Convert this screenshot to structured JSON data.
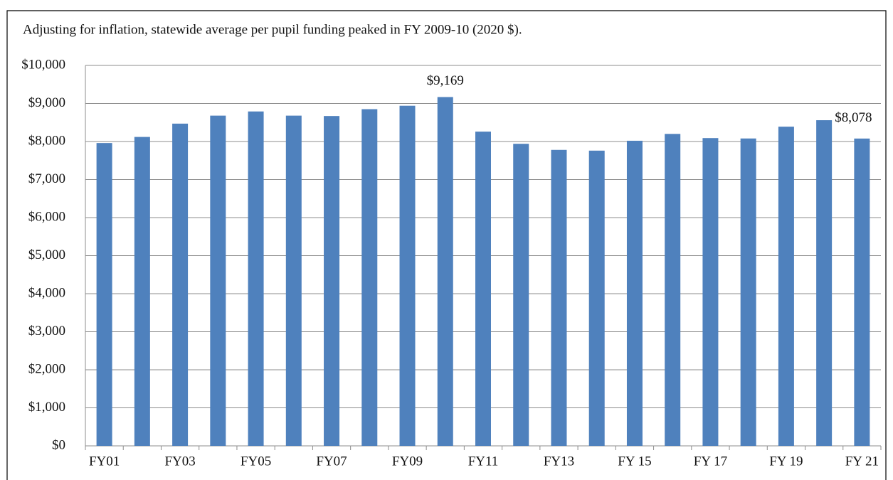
{
  "chart_data": {
    "type": "bar",
    "title": "Adjusting for inflation, statewide average per pupil funding peaked in FY 2009-10 (2020 $).",
    "categories": [
      "FY01",
      null,
      "FY03",
      null,
      "FY05",
      null,
      "FY07",
      null,
      "FY09",
      null,
      "FY11",
      null,
      "FY13",
      null,
      "FY 15",
      null,
      "FY 17",
      null,
      "FY 19",
      null,
      "FY 21"
    ],
    "values": [
      7960,
      8120,
      8470,
      8680,
      8790,
      8680,
      8670,
      8850,
      8940,
      9169,
      8260,
      7940,
      7780,
      7760,
      8020,
      8200,
      8090,
      8080,
      8390,
      8560,
      8078
    ],
    "value_labels": [
      null,
      null,
      null,
      null,
      null,
      null,
      null,
      null,
      null,
      "$9,169",
      null,
      null,
      null,
      null,
      null,
      null,
      null,
      null,
      null,
      null,
      "$8,078"
    ],
    "color": "#4f81bd",
    "ylim": [
      0,
      10000
    ],
    "yticks": [
      {
        "value": 0,
        "label": "$0"
      },
      {
        "value": 1000,
        "label": "$1,000"
      },
      {
        "value": 2000,
        "label": "$2,000"
      },
      {
        "value": 3000,
        "label": "$3,000"
      },
      {
        "value": 4000,
        "label": "$4,000"
      },
      {
        "value": 5000,
        "label": "$5,000"
      },
      {
        "value": 6000,
        "label": "$6,000"
      },
      {
        "value": 7000,
        "label": "$7,000"
      },
      {
        "value": 8000,
        "label": "$8,000"
      },
      {
        "value": 9000,
        "label": "$9,000"
      },
      {
        "value": 10000,
        "label": "$10,000"
      }
    ],
    "grid": true
  }
}
